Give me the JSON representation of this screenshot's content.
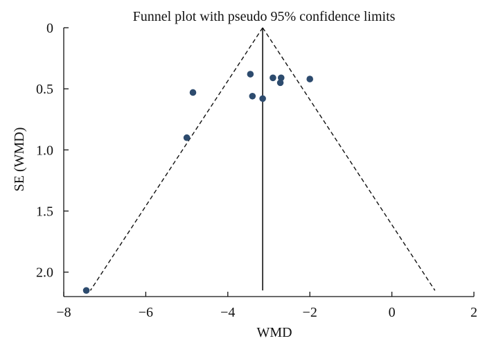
{
  "chart_data": {
    "type": "scatter",
    "title": "Funnel plot with pseudo 95% confidence limits",
    "xlabel": "WMD",
    "ylabel": "SE (WMD)",
    "xlim": [
      -8,
      2
    ],
    "ylim": [
      2.2,
      0
    ],
    "y_reversed": true,
    "x_ticks": [
      -8,
      -6,
      -4,
      -2,
      0,
      2
    ],
    "x_tick_labels": [
      "−8",
      "−6",
      "−4",
      "−2",
      "0",
      "2"
    ],
    "y_ticks": [
      0,
      0.5,
      1.0,
      1.5,
      2.0
    ],
    "y_tick_labels": [
      "0",
      "0.5",
      "1.0",
      "1.5",
      "2.0"
    ],
    "grid": false,
    "legend": "none",
    "pooled_estimate": -3.15,
    "reference_line": {
      "x": -3.15,
      "y_from": 0,
      "y_to": 2.15
    },
    "confidence_limits": {
      "apex": [
        -3.15,
        0
      ],
      "left_end": [
        -7.35,
        2.15
      ],
      "right_end": [
        1.05,
        2.15
      ]
    },
    "points": [
      {
        "x": -3.45,
        "y": 0.38
      },
      {
        "x": -2.9,
        "y": 0.41
      },
      {
        "x": -2.7,
        "y": 0.41
      },
      {
        "x": -2.0,
        "y": 0.42
      },
      {
        "x": -2.72,
        "y": 0.45
      },
      {
        "x": -4.85,
        "y": 0.53
      },
      {
        "x": -3.4,
        "y": 0.56
      },
      {
        "x": -3.15,
        "y": 0.58
      },
      {
        "x": -5.0,
        "y": 0.9
      },
      {
        "x": -7.45,
        "y": 2.15
      }
    ],
    "colors": {
      "point": "#2d4b6e",
      "axis": "#111111",
      "line": "#111111"
    }
  }
}
